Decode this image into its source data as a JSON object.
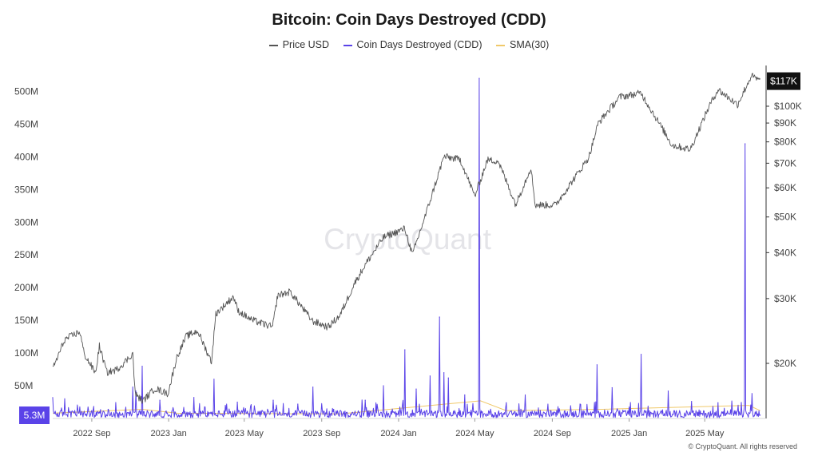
{
  "chart_data": {
    "type": "line",
    "title": "Bitcoin: Coin Days Destroyed (CDD)",
    "legend": [
      {
        "label": "Price USD",
        "color": "#555555"
      },
      {
        "label": "Coin Days Destroyed (CDD)",
        "color": "#5a43e8"
      },
      {
        "label": "SMA(30)",
        "color": "#f0c96a"
      }
    ],
    "legend_position": "top-center",
    "watermark": "CryptoQuant",
    "copyright": "© CryptoQuant. All rights reserved",
    "x_axis": {
      "range": [
        "2022-07-01",
        "2025-07-31"
      ],
      "tick_labels": [
        "2022 Sep",
        "2023 Jan",
        "2023 May",
        "2023 Sep",
        "2024 Jan",
        "2024 May",
        "2024 Sep",
        "2025 Jan",
        "2025 May"
      ],
      "tick_dates": [
        "2022-09-01",
        "2023-01-01",
        "2023-05-01",
        "2023-09-01",
        "2024-01-01",
        "2024-05-01",
        "2024-09-01",
        "2025-01-01",
        "2025-05-01"
      ]
    },
    "left_axis": {
      "label": "",
      "ylim": [
        0,
        525000000
      ],
      "tick_labels": [
        "50M",
        "100M",
        "150M",
        "200M",
        "250M",
        "300M",
        "350M",
        "400M",
        "450M",
        "500M"
      ],
      "tick_values": [
        50000000,
        100000000,
        150000000,
        200000000,
        250000000,
        300000000,
        350000000,
        400000000,
        450000000,
        500000000
      ]
    },
    "right_axis": {
      "label": "",
      "scale": "log",
      "tick_labels": [
        "$20K",
        "$30K",
        "$40K",
        "$50K",
        "$60K",
        "$70K",
        "$80K",
        "$90K",
        "$100K"
      ],
      "tick_values": [
        20000,
        30000,
        40000,
        50000,
        60000,
        70000,
        80000,
        90000,
        100000
      ]
    },
    "grid": false,
    "current_price_label": "$117K",
    "current_cdd_label": "5.3M",
    "series": [
      {
        "name": "Price USD",
        "axis": "right",
        "points": [
          [
            "2022-07-01",
            19300
          ],
          [
            "2022-07-20",
            23200
          ],
          [
            "2022-08-13",
            24400
          ],
          [
            "2022-08-20",
            21200
          ],
          [
            "2022-09-07",
            18800
          ],
          [
            "2022-09-13",
            22300
          ],
          [
            "2022-09-25",
            18900
          ],
          [
            "2022-10-10",
            19200
          ],
          [
            "2022-10-29",
            20600
          ],
          [
            "2022-11-05",
            21300
          ],
          [
            "2022-11-09",
            16500
          ],
          [
            "2022-11-21",
            15800
          ],
          [
            "2022-12-10",
            17100
          ],
          [
            "2022-12-31",
            16550
          ],
          [
            "2023-01-14",
            20800
          ],
          [
            "2023-01-29",
            23700
          ],
          [
            "2023-02-16",
            24500
          ],
          [
            "2023-03-10",
            20200
          ],
          [
            "2023-03-17",
            27300
          ],
          [
            "2023-04-14",
            30400
          ],
          [
            "2023-04-21",
            27800
          ],
          [
            "2023-05-12",
            26300
          ],
          [
            "2023-06-15",
            25100
          ],
          [
            "2023-06-23",
            30600
          ],
          [
            "2023-07-13",
            31300
          ],
          [
            "2023-08-17",
            26100
          ],
          [
            "2023-09-11",
            25100
          ],
          [
            "2023-09-30",
            27000
          ],
          [
            "2023-10-23",
            33000
          ],
          [
            "2023-11-10",
            37300
          ],
          [
            "2023-12-08",
            44000
          ],
          [
            "2024-01-11",
            46500
          ],
          [
            "2024-01-23",
            39500
          ],
          [
            "2024-02-15",
            52000
          ],
          [
            "2024-03-13",
            73000
          ],
          [
            "2024-04-08",
            71600
          ],
          [
            "2024-05-01",
            57000
          ],
          [
            "2024-05-21",
            71400
          ],
          [
            "2024-06-07",
            71000
          ],
          [
            "2024-07-05",
            54000
          ],
          [
            "2024-07-29",
            68200
          ],
          [
            "2024-08-05",
            53900
          ],
          [
            "2024-09-06",
            53900
          ],
          [
            "2024-10-15",
            67000
          ],
          [
            "2024-10-29",
            72700
          ],
          [
            "2024-11-13",
            90000
          ],
          [
            "2024-12-17",
            106000
          ],
          [
            "2025-01-20",
            108500
          ],
          [
            "2025-02-27",
            84500
          ],
          [
            "2025-03-10",
            78400
          ],
          [
            "2025-04-08",
            76300
          ],
          [
            "2025-05-08",
            100000
          ],
          [
            "2025-05-22",
            111000
          ],
          [
            "2025-06-22",
            101000
          ],
          [
            "2025-07-14",
            121000
          ],
          [
            "2025-07-28",
            117000
          ]
        ]
      },
      {
        "name": "Coin Days Destroyed (CDD)",
        "axis": "left",
        "spikes": [
          [
            "2022-07-01",
            32000000
          ],
          [
            "2022-07-20",
            30000000
          ],
          [
            "2022-09-27",
            14000000
          ],
          [
            "2022-11-05",
            48000000
          ],
          [
            "2022-11-10",
            42000000
          ],
          [
            "2022-11-20",
            80000000
          ],
          [
            "2022-12-18",
            28000000
          ],
          [
            "2023-02-10",
            32000000
          ],
          [
            "2023-03-14",
            60000000
          ],
          [
            "2023-04-20",
            25000000
          ],
          [
            "2023-06-16",
            28000000
          ],
          [
            "2023-07-25",
            22000000
          ],
          [
            "2023-08-18",
            48000000
          ],
          [
            "2023-09-20",
            14000000
          ],
          [
            "2023-11-09",
            28000000
          ],
          [
            "2023-12-08",
            50000000
          ],
          [
            "2024-01-11",
            105000000
          ],
          [
            "2024-01-29",
            45000000
          ],
          [
            "2024-02-20",
            65000000
          ],
          [
            "2024-03-06",
            155000000
          ],
          [
            "2024-03-13",
            70000000
          ],
          [
            "2024-03-20",
            62000000
          ],
          [
            "2024-04-15",
            36000000
          ],
          [
            "2024-05-08",
            520000000
          ],
          [
            "2024-06-20",
            24000000
          ],
          [
            "2024-07-20",
            36000000
          ],
          [
            "2024-08-10",
            16000000
          ],
          [
            "2024-10-15",
            22000000
          ],
          [
            "2024-11-11",
            82000000
          ],
          [
            "2024-12-05",
            47000000
          ],
          [
            "2025-01-20",
            98000000
          ],
          [
            "2025-03-04",
            42000000
          ],
          [
            "2025-04-10",
            26000000
          ],
          [
            "2025-05-22",
            24000000
          ],
          [
            "2025-07-04",
            420000000
          ],
          [
            "2025-07-15",
            38000000
          ],
          [
            "2025-07-28",
            5300000
          ]
        ],
        "baseline_typical": 8000000
      },
      {
        "name": "SMA(30)",
        "axis": "left",
        "points": [
          [
            "2022-07-01",
            8000000
          ],
          [
            "2022-11-20",
            14000000
          ],
          [
            "2023-01-15",
            8000000
          ],
          [
            "2023-09-30",
            7000000
          ],
          [
            "2024-03-15",
            22000000
          ],
          [
            "2024-05-10",
            27000000
          ],
          [
            "2024-06-20",
            12000000
          ],
          [
            "2024-11-20",
            14000000
          ],
          [
            "2025-07-10",
            20000000
          ],
          [
            "2025-07-28",
            12000000
          ]
        ]
      }
    ]
  }
}
